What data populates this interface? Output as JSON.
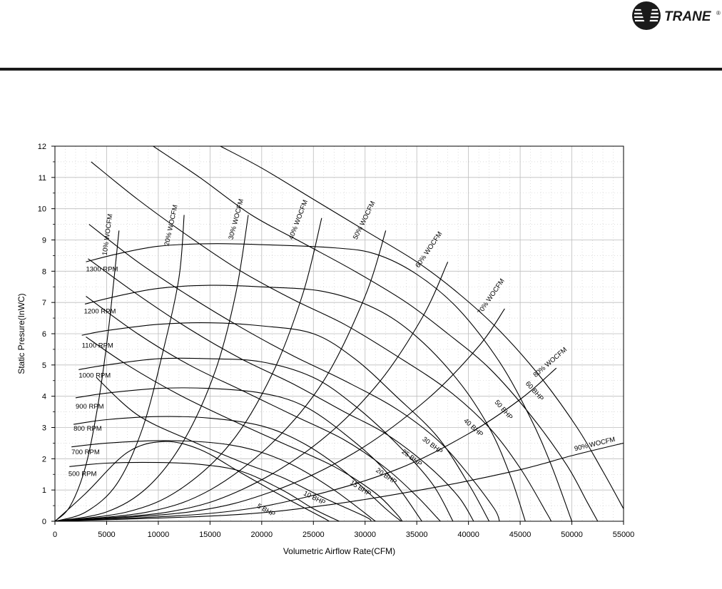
{
  "brand": {
    "name": "TRANE",
    "mark": "®"
  },
  "chart_data": {
    "type": "line",
    "title": "",
    "xlabel": "Volumetric Airflow Rate(CFM)",
    "ylabel": "Static Presure(InWC)",
    "xlim": [
      0,
      55000
    ],
    "ylim": [
      0,
      12
    ],
    "x_ticks": [
      0,
      5000,
      10000,
      15000,
      20000,
      25000,
      30000,
      35000,
      40000,
      45000,
      50000,
      55000
    ],
    "y_ticks": [
      0,
      1,
      2,
      3,
      4,
      5,
      6,
      7,
      8,
      9,
      10,
      11,
      12
    ],
    "grid": true,
    "rpm_curves": [
      {
        "label": "500 RPM",
        "label_pos": [
          1300,
          1.45
        ],
        "points": [
          [
            1400,
            1.75
          ],
          [
            5000,
            1.86
          ],
          [
            10000,
            1.88
          ],
          [
            14000,
            1.82
          ],
          [
            18000,
            1.6
          ],
          [
            22000,
            1.0
          ],
          [
            25000,
            0.4
          ],
          [
            27500,
            0
          ]
        ]
      },
      {
        "label": "700 RPM",
        "label_pos": [
          1600,
          2.15
        ],
        "points": [
          [
            1600,
            2.38
          ],
          [
            5000,
            2.5
          ],
          [
            10000,
            2.58
          ],
          [
            15000,
            2.52
          ],
          [
            19000,
            2.3
          ],
          [
            23000,
            1.8
          ],
          [
            27000,
            1.0
          ],
          [
            31000,
            0
          ]
        ]
      },
      {
        "label": "800 RPM",
        "label_pos": [
          1800,
          2.9
        ],
        "points": [
          [
            1800,
            3.1
          ],
          [
            5000,
            3.25
          ],
          [
            10000,
            3.35
          ],
          [
            15000,
            3.3
          ],
          [
            20000,
            3.05
          ],
          [
            24000,
            2.5
          ],
          [
            28000,
            1.6
          ],
          [
            32000,
            0.4
          ],
          [
            33500,
            0
          ]
        ]
      },
      {
        "label": "900 RPM",
        "label_pos": [
          2000,
          3.6
        ],
        "points": [
          [
            2000,
            3.95
          ],
          [
            5000,
            4.1
          ],
          [
            10000,
            4.25
          ],
          [
            15000,
            4.25
          ],
          [
            20000,
            4.1
          ],
          [
            24000,
            3.7
          ],
          [
            28000,
            2.8
          ],
          [
            32000,
            1.6
          ],
          [
            35500,
            0
          ]
        ]
      },
      {
        "label": "1000 RPM",
        "label_pos": [
          2300,
          4.6
        ],
        "points": [
          [
            2300,
            4.85
          ],
          [
            5000,
            5.0
          ],
          [
            10000,
            5.2
          ],
          [
            15000,
            5.2
          ],
          [
            20000,
            5.1
          ],
          [
            25000,
            4.6
          ],
          [
            29000,
            3.7
          ],
          [
            33000,
            2.5
          ],
          [
            36500,
            1.2
          ],
          [
            38500,
            0
          ]
        ]
      },
      {
        "label": "1100 RPM",
        "label_pos": [
          2600,
          5.55
        ],
        "points": [
          [
            2600,
            5.95
          ],
          [
            5000,
            6.1
          ],
          [
            10000,
            6.3
          ],
          [
            15000,
            6.35
          ],
          [
            20000,
            6.25
          ],
          [
            25000,
            6.0
          ],
          [
            29000,
            5.2
          ],
          [
            33000,
            4.0
          ],
          [
            37000,
            2.7
          ],
          [
            40000,
            1.2
          ],
          [
            42000,
            0
          ]
        ]
      },
      {
        "label": "1200 RPM",
        "label_pos": [
          2800,
          6.65
        ],
        "points": [
          [
            2900,
            6.95
          ],
          [
            6000,
            7.2
          ],
          [
            10000,
            7.45
          ],
          [
            15000,
            7.55
          ],
          [
            20000,
            7.5
          ],
          [
            26000,
            7.35
          ],
          [
            31000,
            6.8
          ],
          [
            35000,
            5.9
          ],
          [
            39000,
            4.5
          ],
          [
            42000,
            3.0
          ],
          [
            44000,
            1.5
          ],
          [
            45500,
            0
          ]
        ]
      },
      {
        "label": "1300 RPM",
        "label_pos": [
          3000,
          8.0
        ],
        "points": [
          [
            3000,
            8.3
          ],
          [
            6000,
            8.55
          ],
          [
            10000,
            8.8
          ],
          [
            15000,
            8.88
          ],
          [
            20000,
            8.85
          ],
          [
            27000,
            8.75
          ],
          [
            31000,
            8.55
          ],
          [
            35000,
            7.9
          ],
          [
            39000,
            6.8
          ],
          [
            43000,
            5.1
          ],
          [
            46000,
            3.3
          ],
          [
            48000,
            1.8
          ],
          [
            50000,
            0
          ]
        ]
      }
    ],
    "bhp_curves": [
      {
        "label": "5 BHP",
        "label_pos": [
          19500,
          0.45
        ],
        "points": [
          [
            0,
            0
          ],
          [
            3000,
            0.9
          ],
          [
            7000,
            2.2
          ],
          [
            10500,
            2.55
          ],
          [
            14000,
            2.3
          ],
          [
            18000,
            1.55
          ],
          [
            22000,
            0.8
          ],
          [
            26000,
            0.1
          ],
          [
            26500,
            0
          ]
        ]
      },
      {
        "label": "10 BHP",
        "label_pos": [
          24000,
          0.85
        ],
        "points": [
          [
            4000,
            4.6
          ],
          [
            8000,
            3.4
          ],
          [
            13000,
            2.6
          ],
          [
            18000,
            1.9
          ],
          [
            22000,
            1.4
          ],
          [
            26000,
            0.75
          ],
          [
            30000,
            0.15
          ],
          [
            30600,
            0
          ]
        ]
      },
      {
        "label": "15 BHP",
        "label_pos": [
          28500,
          1.2
        ],
        "points": [
          [
            3000,
            5.9
          ],
          [
            7000,
            5.0
          ],
          [
            12000,
            4.05
          ],
          [
            17000,
            3.25
          ],
          [
            22000,
            2.5
          ],
          [
            27000,
            1.75
          ],
          [
            31000,
            0.9
          ],
          [
            33000,
            0.25
          ],
          [
            33600,
            0
          ]
        ]
      },
      {
        "label": "20 BHP",
        "label_pos": [
          31000,
          1.6
        ],
        "points": [
          [
            3000,
            7.2
          ],
          [
            8000,
            6.0
          ],
          [
            13000,
            5.0
          ],
          [
            18000,
            4.2
          ],
          [
            23000,
            3.4
          ],
          [
            28000,
            2.6
          ],
          [
            32000,
            1.7
          ],
          [
            35000,
            0.8
          ],
          [
            37000,
            0.1
          ],
          [
            37300,
            0
          ]
        ]
      },
      {
        "label": "25 BHP",
        "label_pos": [
          33500,
          2.2
        ],
        "points": [
          [
            3200,
            8.4
          ],
          [
            8000,
            7.25
          ],
          [
            13000,
            6.15
          ],
          [
            18000,
            5.2
          ],
          [
            23000,
            4.4
          ],
          [
            28000,
            3.5
          ],
          [
            32000,
            2.8
          ],
          [
            36000,
            1.8
          ],
          [
            39000,
            0.8
          ],
          [
            40500,
            0
          ]
        ]
      },
      {
        "label": "30 BHP",
        "label_pos": [
          35500,
          2.6
        ],
        "points": [
          [
            3300,
            9.5
          ],
          [
            8000,
            8.3
          ],
          [
            13000,
            7.2
          ],
          [
            18000,
            6.2
          ],
          [
            23000,
            5.3
          ],
          [
            28000,
            4.5
          ],
          [
            33000,
            3.6
          ],
          [
            37000,
            2.6
          ],
          [
            40000,
            1.5
          ],
          [
            42500,
            0.4
          ],
          [
            43000,
            0
          ]
        ]
      },
      {
        "label": "40 BHP",
        "label_pos": [
          39500,
          3.2
        ],
        "points": [
          [
            3500,
            11.5
          ],
          [
            8000,
            10.3
          ],
          [
            13000,
            9.1
          ],
          [
            18000,
            8.0
          ],
          [
            23000,
            7.1
          ],
          [
            28000,
            6.3
          ],
          [
            33000,
            5.3
          ],
          [
            38000,
            4.2
          ],
          [
            42000,
            3.0
          ],
          [
            45000,
            1.7
          ],
          [
            47500,
            0.3
          ],
          [
            48000,
            0
          ]
        ]
      },
      {
        "label": "50 BHP",
        "label_pos": [
          42500,
          3.8
        ],
        "points": [
          [
            9500,
            12
          ],
          [
            14000,
            11.0
          ],
          [
            19000,
            9.8
          ],
          [
            24000,
            8.9
          ],
          [
            29000,
            8.0
          ],
          [
            34000,
            7.0
          ],
          [
            38000,
            6.0
          ],
          [
            42000,
            4.9
          ],
          [
            46000,
            3.4
          ],
          [
            49500,
            1.8
          ],
          [
            51500,
            0.6
          ],
          [
            52500,
            0
          ]
        ]
      },
      {
        "label": "60 BHP",
        "label_pos": [
          45500,
          4.4
        ],
        "points": [
          [
            16000,
            12
          ],
          [
            20000,
            11.3
          ],
          [
            25000,
            10.3
          ],
          [
            30000,
            9.3
          ],
          [
            35000,
            8.3
          ],
          [
            39000,
            7.3
          ],
          [
            43000,
            6.1
          ],
          [
            47000,
            4.6
          ],
          [
            50500,
            3.0
          ],
          [
            53000,
            1.6
          ],
          [
            55000,
            0.4
          ]
        ]
      }
    ],
    "wocfm_curves": [
      {
        "label": "10% WOCFM",
        "label_pos": [
          5000,
          8.5
        ],
        "points": [
          [
            0,
            0
          ],
          [
            1500,
            0.5
          ],
          [
            3000,
            1.8
          ],
          [
            4200,
            3.8
          ],
          [
            5200,
            6.2
          ],
          [
            6200,
            9.3
          ]
        ]
      },
      {
        "label": "20% WOCFM",
        "label_pos": [
          11000,
          8.8
        ],
        "points": [
          [
            0,
            0
          ],
          [
            3000,
            0.3
          ],
          [
            6000,
            1.2
          ],
          [
            8500,
            3.0
          ],
          [
            10500,
            5.5
          ],
          [
            12000,
            7.8
          ],
          [
            12500,
            9.8
          ]
        ]
      },
      {
        "label": "30% WOCFM",
        "label_pos": [
          17200,
          9.0
        ],
        "points": [
          [
            0,
            0
          ],
          [
            5000,
            0.3
          ],
          [
            9000,
            1.1
          ],
          [
            12500,
            2.6
          ],
          [
            15500,
            4.8
          ],
          [
            17500,
            7.3
          ],
          [
            18700,
            9.8
          ]
        ]
      },
      {
        "label": "40% WOCFM",
        "label_pos": [
          23000,
          9.0
        ],
        "points": [
          [
            0,
            0
          ],
          [
            7000,
            0.3
          ],
          [
            12000,
            1.0
          ],
          [
            17000,
            2.5
          ],
          [
            21000,
            4.7
          ],
          [
            24000,
            7.3
          ],
          [
            25800,
            9.7
          ]
        ]
      },
      {
        "label": "50% WOCFM",
        "label_pos": [
          29200,
          9.0
        ],
        "points": [
          [
            0,
            0
          ],
          [
            9000,
            0.3
          ],
          [
            15000,
            1.0
          ],
          [
            21000,
            2.5
          ],
          [
            26000,
            4.5
          ],
          [
            30000,
            7.2
          ],
          [
            32000,
            9.3
          ]
        ]
      },
      {
        "label": "60% WOCFM",
        "label_pos": [
          35200,
          8.1
        ],
        "points": [
          [
            0,
            0
          ],
          [
            11000,
            0.3
          ],
          [
            18000,
            1.0
          ],
          [
            25000,
            2.4
          ],
          [
            31000,
            4.3
          ],
          [
            35500,
            6.5
          ],
          [
            38000,
            8.3
          ]
        ]
      },
      {
        "label": "70% WOCFM",
        "label_pos": [
          41200,
          6.6
        ],
        "points": [
          [
            0,
            0
          ],
          [
            13000,
            0.3
          ],
          [
            21000,
            0.95
          ],
          [
            29000,
            2.2
          ],
          [
            36000,
            3.9
          ],
          [
            41000,
            5.6
          ],
          [
            43500,
            6.8
          ]
        ]
      },
      {
        "label": "80% WOCFM",
        "label_pos": [
          46500,
          4.6
        ],
        "points": [
          [
            0,
            0
          ],
          [
            15000,
            0.25
          ],
          [
            24000,
            0.75
          ],
          [
            33000,
            1.65
          ],
          [
            40000,
            2.8
          ],
          [
            45000,
            3.9
          ],
          [
            48500,
            4.9
          ]
        ]
      },
      {
        "label": "90% WOCFM",
        "label_pos": [
          50300,
          2.25
        ],
        "points": [
          [
            0,
            0
          ],
          [
            17000,
            0.2
          ],
          [
            27000,
            0.55
          ],
          [
            37000,
            1.1
          ],
          [
            45000,
            1.65
          ],
          [
            50000,
            2.1
          ],
          [
            55000,
            2.5
          ]
        ]
      }
    ]
  }
}
